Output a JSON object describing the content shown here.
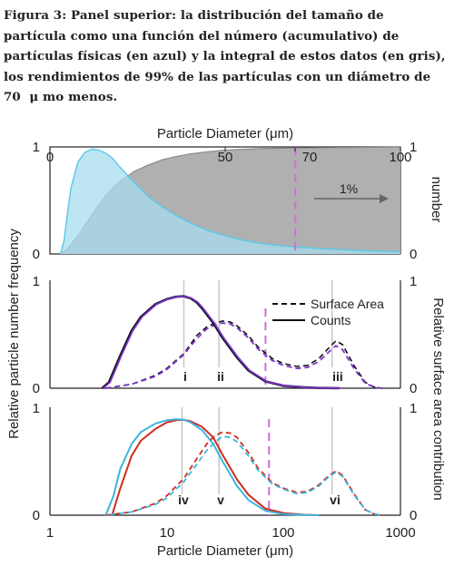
{
  "caption": "Figura 3: Panel superior: la distribución del tamaño de partícula como una función del número (acumulativo) de partículas físicas (en azul) y la integral de estos datos (en gris), los rendimientos de 99% de las partículas con un diámetro de 70  μ mo menos.",
  "chart_data": [
    {
      "type": "area",
      "panel": "top",
      "xlabel": "Particle Diameter (μm)",
      "x_scale": "linear",
      "xlim": [
        0,
        100
      ],
      "x_ticks": [
        "0",
        "50",
        "70",
        "100"
      ],
      "ylim": [
        0,
        1
      ],
      "y_ticks_left": [
        "0",
        "1"
      ],
      "y_ticks_right": [
        "0",
        "1"
      ],
      "ylabel_right": "number",
      "annotation": "1%",
      "marker_line_x": 70,
      "colors": {
        "distribution": "#5bc8e8",
        "integral": "#8a8a8a",
        "marker": "#cf6fd6"
      },
      "series": [
        {
          "values_x": [
            3,
            4,
            5,
            6,
            8,
            10,
            12,
            14,
            16,
            18,
            20,
            24,
            28,
            32,
            36,
            40,
            45,
            50,
            55,
            60,
            65,
            70,
            80,
            90,
            100
          ],
          "values_y": [
            0,
            0.12,
            0.38,
            0.62,
            0.86,
            0.95,
            0.98,
            0.97,
            0.94,
            0.89,
            0.81,
            0.67,
            0.54,
            0.44,
            0.36,
            0.29,
            0.22,
            0.17,
            0.13,
            0.1,
            0.08,
            0.065,
            0.045,
            0.03,
            0.02
          ]
        },
        {
          "values_x": [
            3,
            5,
            8,
            10,
            12,
            14,
            16,
            18,
            20,
            24,
            28,
            32,
            36,
            40,
            45,
            50,
            55,
            60,
            65,
            70,
            80,
            90,
            100
          ],
          "values_y": [
            0,
            0.05,
            0.17,
            0.27,
            0.37,
            0.46,
            0.55,
            0.62,
            0.68,
            0.77,
            0.83,
            0.88,
            0.91,
            0.935,
            0.955,
            0.97,
            0.978,
            0.984,
            0.988,
            0.99,
            0.993,
            0.996,
            0.998
          ]
        }
      ]
    },
    {
      "type": "line",
      "panel": "middle",
      "x_scale": "log",
      "xlim": [
        1,
        1000
      ],
      "ylim": [
        0,
        1
      ],
      "y_ticks_left": [
        "0",
        "1"
      ],
      "y_ticks_right": [
        "0",
        "1"
      ],
      "ylabel_left": "Relative particle number frequency",
      "ylabel_right": "Relative surface area contribution",
      "legend": [
        "Surface Area",
        "Counts"
      ],
      "legend_position": "top-right",
      "reference_lines_x": [
        14,
        28,
        260
      ],
      "reference_labels": [
        "i",
        "ii",
        "iii"
      ],
      "marker_line_x": 70,
      "colors": {
        "counts": "#7a33cc",
        "surface": "#7a33cc",
        "black": "#111111"
      },
      "series": [
        {
          "values_x": [
            2.8,
            3.2,
            4,
            5,
            6,
            8,
            10,
            12,
            14,
            16,
            18,
            20,
            25,
            30,
            40,
            50,
            70,
            100,
            150,
            200,
            300
          ],
          "values_y": [
            0,
            0.06,
            0.33,
            0.58,
            0.72,
            0.85,
            0.9,
            0.925,
            0.93,
            0.91,
            0.87,
            0.81,
            0.66,
            0.51,
            0.31,
            0.18,
            0.07,
            0.025,
            0.008,
            0.003,
            0
          ]
        },
        {
          "values_x": [
            3,
            5,
            8,
            10,
            14,
            18,
            22,
            26,
            30,
            35,
            40,
            50,
            60,
            80,
            100,
            130,
            160,
            200,
            240,
            280,
            320,
            400,
            500,
            600,
            700
          ],
          "values_y": [
            0,
            0.04,
            0.13,
            0.2,
            0.35,
            0.53,
            0.62,
            0.66,
            0.68,
            0.67,
            0.63,
            0.53,
            0.42,
            0.3,
            0.25,
            0.22,
            0.23,
            0.3,
            0.4,
            0.48,
            0.44,
            0.23,
            0.06,
            0.01,
            0
          ]
        },
        {
          "values_x": [
            3,
            5,
            8,
            10,
            14,
            18,
            22,
            26,
            30,
            35,
            40,
            50,
            60,
            80,
            100,
            130,
            160,
            200,
            240,
            280,
            320,
            400,
            500,
            600,
            700
          ],
          "values_y": [
            0,
            0.04,
            0.12,
            0.19,
            0.34,
            0.5,
            0.6,
            0.64,
            0.66,
            0.65,
            0.61,
            0.51,
            0.4,
            0.28,
            0.23,
            0.2,
            0.21,
            0.27,
            0.36,
            0.43,
            0.39,
            0.2,
            0.05,
            0.01,
            0
          ]
        }
      ]
    },
    {
      "type": "line",
      "panel": "bottom",
      "xlabel": "Particle Diameter (μm)",
      "x_scale": "log",
      "xlim": [
        1,
        1000
      ],
      "x_ticks": [
        "1",
        "10",
        "100",
        "1000"
      ],
      "ylim": [
        0,
        1
      ],
      "y_ticks_left": [
        "0",
        "1"
      ],
      "y_ticks_right": [
        "0",
        "1"
      ],
      "reference_lines_x": [
        13.5,
        28,
        260
      ],
      "reference_labels": [
        "iv",
        "v",
        "vi"
      ],
      "marker_line_x": 75,
      "colors": {
        "cyan": "#3ab6de",
        "red": "#d12b1e"
      },
      "series": [
        {
          "values_x": [
            3,
            3.5,
            4,
            5,
            6,
            8,
            10,
            12,
            14,
            16,
            20,
            25,
            30,
            40,
            50,
            70,
            100,
            150,
            200
          ],
          "values_y": [
            0,
            0.18,
            0.43,
            0.66,
            0.77,
            0.85,
            0.88,
            0.89,
            0.885,
            0.86,
            0.79,
            0.66,
            0.5,
            0.27,
            0.14,
            0.04,
            0.01,
            0.002,
            0
          ]
        },
        {
          "values_x": [
            3.4,
            4,
            5,
            6,
            8,
            10,
            12,
            14,
            16,
            20,
            25,
            30,
            40,
            50,
            70,
            100,
            150,
            200
          ],
          "values_y": [
            0,
            0.25,
            0.55,
            0.69,
            0.8,
            0.86,
            0.88,
            0.885,
            0.87,
            0.82,
            0.72,
            0.56,
            0.33,
            0.19,
            0.06,
            0.02,
            0.004,
            0
          ]
        },
        {
          "values_x": [
            3,
            5,
            8,
            10,
            14,
            18,
            22,
            26,
            30,
            35,
            40,
            50,
            60,
            80,
            100,
            130,
            160,
            200,
            240,
            280,
            320,
            400,
            500,
            600,
            700
          ],
          "values_y": [
            0,
            0.03,
            0.1,
            0.16,
            0.31,
            0.47,
            0.6,
            0.68,
            0.73,
            0.72,
            0.68,
            0.55,
            0.42,
            0.29,
            0.24,
            0.2,
            0.21,
            0.27,
            0.35,
            0.4,
            0.36,
            0.19,
            0.05,
            0.01,
            0
          ]
        },
        {
          "values_x": [
            3,
            5,
            8,
            10,
            14,
            18,
            22,
            26,
            30,
            35,
            40,
            50,
            60,
            80,
            100,
            130,
            160,
            200,
            240,
            280,
            320,
            400,
            500,
            600,
            700
          ],
          "values_y": [
            0,
            0.03,
            0.11,
            0.18,
            0.34,
            0.52,
            0.66,
            0.74,
            0.77,
            0.76,
            0.72,
            0.58,
            0.44,
            0.3,
            0.25,
            0.21,
            0.22,
            0.28,
            0.36,
            0.41,
            0.37,
            0.2,
            0.05,
            0.01,
            0
          ]
        }
      ]
    }
  ]
}
